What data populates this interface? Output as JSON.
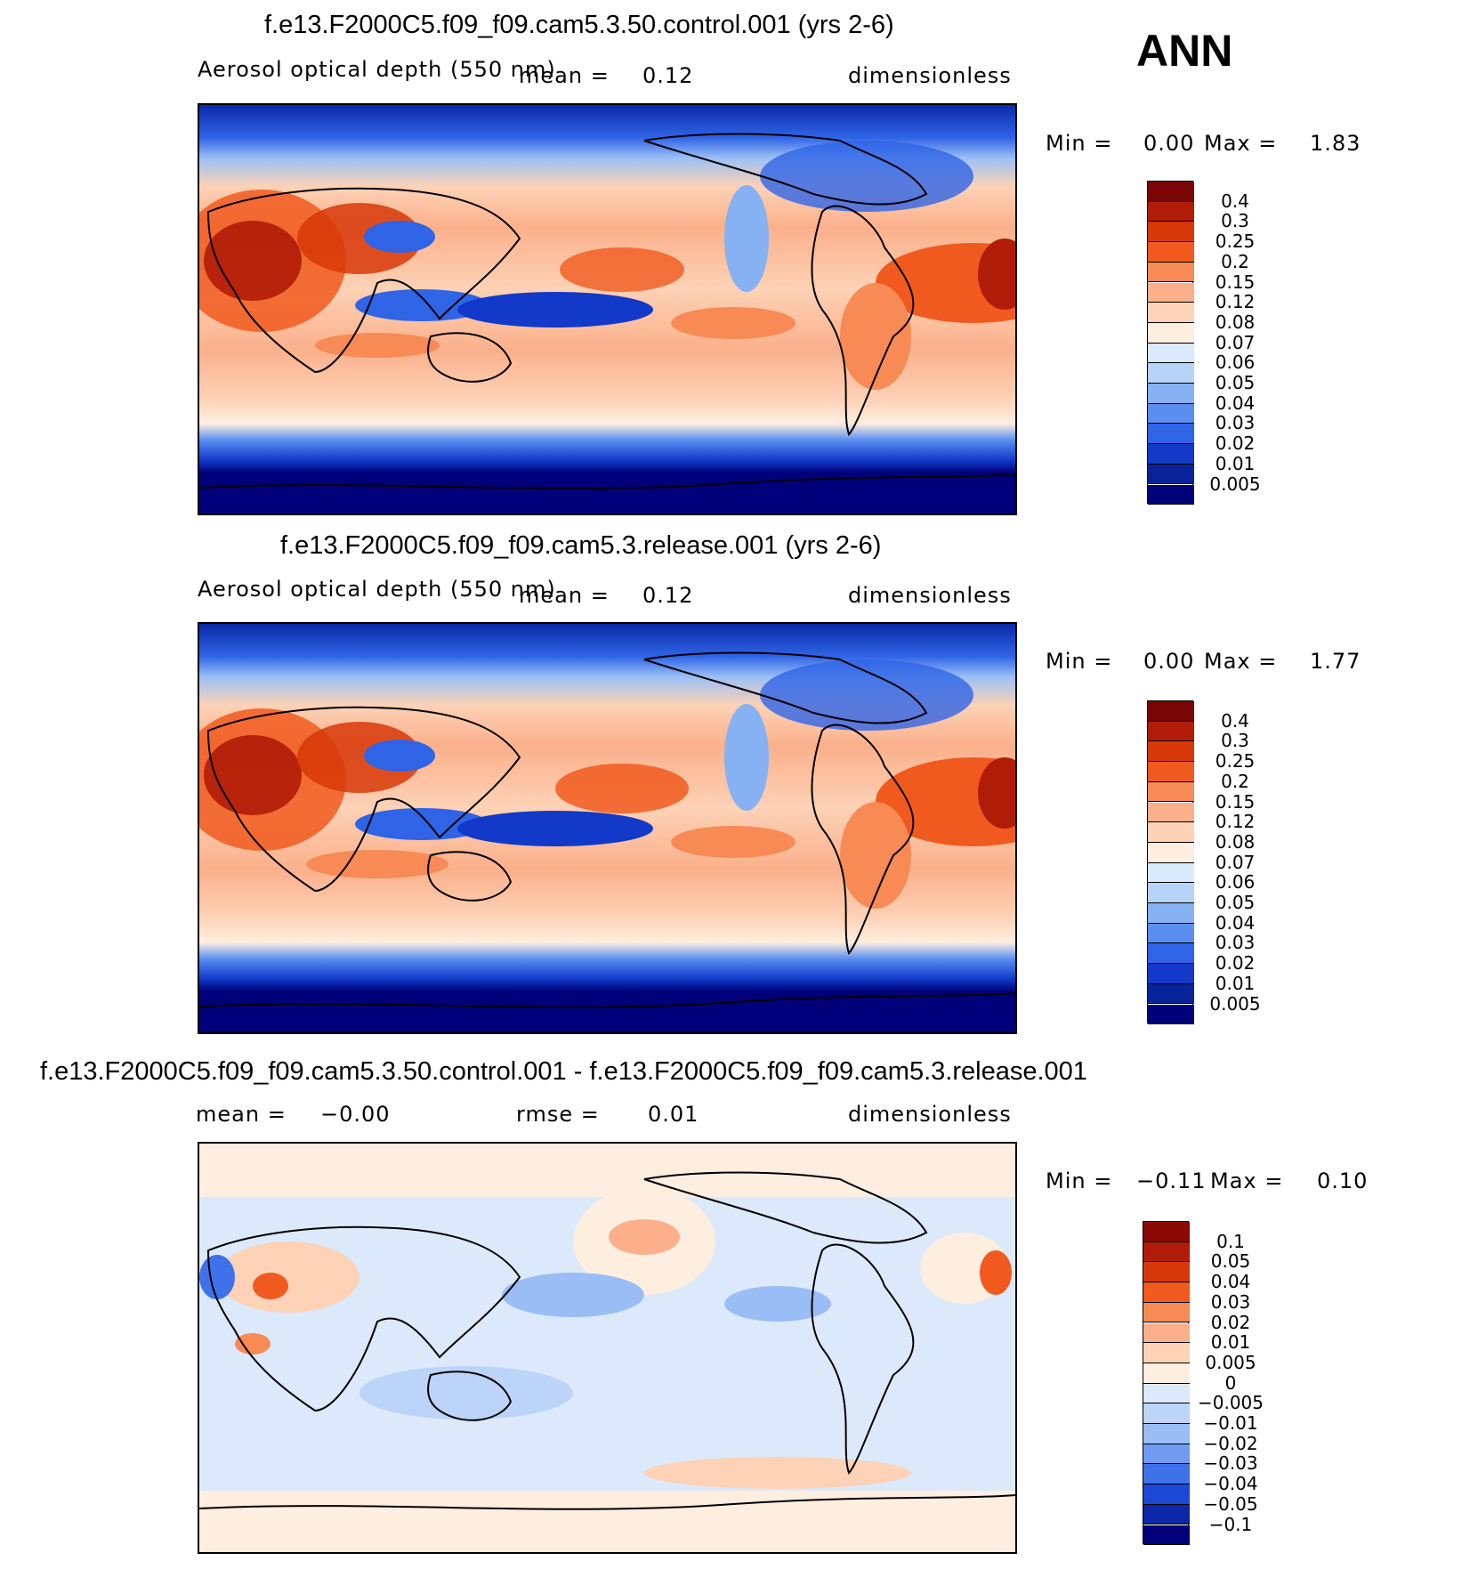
{
  "season": "ANN",
  "units": "dimensionless",
  "panels": [
    {
      "title": "f.e13.F2000C5.f09_f09.cam5.3.50.control.001 (yrs 2-6)",
      "left_label": "Aerosol optical depth (550 nm)",
      "mean_label": "mean =",
      "mean_value": "0.12",
      "units": "dimensionless",
      "min_label": "Min =",
      "min_value": "0.00",
      "max_label": "Max =",
      "max_value": "1.83",
      "colorbar_labels": [
        "0.4",
        "0.3",
        "0.25",
        "0.2",
        "0.15",
        "0.12",
        "0.08",
        "0.07",
        "0.06",
        "0.05",
        "0.04",
        "0.03",
        "0.02",
        "0.01",
        "0.005"
      ],
      "colorbar_colors": [
        "#7a0403",
        "#b01c07",
        "#d73808",
        "#f05a1e",
        "#f78a55",
        "#fbb08b",
        "#fdd2b6",
        "#fdeee0",
        "#d8eafb",
        "#b6d3f8",
        "#86b2f3",
        "#5a8ff0",
        "#2f64e6",
        "#1239c8",
        "#08239a",
        "#00007a"
      ]
    },
    {
      "title": "f.e13.F2000C5.f09_f09.cam5.3.release.001 (yrs 2-6)",
      "left_label": "Aerosol optical depth (550 nm)",
      "mean_label": "mean =",
      "mean_value": "0.12",
      "units": "dimensionless",
      "min_label": "Min =",
      "min_value": "0.00",
      "max_label": "Max =",
      "max_value": "1.77",
      "colorbar_labels": [
        "0.4",
        "0.3",
        "0.25",
        "0.2",
        "0.15",
        "0.12",
        "0.08",
        "0.07",
        "0.06",
        "0.05",
        "0.04",
        "0.03",
        "0.02",
        "0.01",
        "0.005"
      ],
      "colorbar_colors": [
        "#7a0403",
        "#b01c07",
        "#d73808",
        "#f05a1e",
        "#f78a55",
        "#fbb08b",
        "#fdd2b6",
        "#fdeee0",
        "#d8eafb",
        "#b6d3f8",
        "#86b2f3",
        "#5a8ff0",
        "#2f64e6",
        "#1239c8",
        "#08239a",
        "#00007a"
      ]
    },
    {
      "title": "f.e13.F2000C5.f09_f09.cam5.3.50.control.001 - f.e13.F2000C5.f09_f09.cam5.3.release.001",
      "mean_label": "mean =",
      "mean_value": "−0.00",
      "rmse_label": "rmse =",
      "rmse_value": "0.01",
      "units": "dimensionless",
      "min_label": "Min =",
      "min_value": "−0.11",
      "max_label": "Max =",
      "max_value": "0.10",
      "colorbar_labels": [
        "0.1",
        "0.05",
        "0.04",
        "0.03",
        "0.02",
        "0.01",
        "0.005",
        "0",
        "−0.005",
        "−0.01",
        "−0.02",
        "−0.03",
        "−0.04",
        "−0.05",
        "−0.1"
      ],
      "colorbar_colors": [
        "#8b0a05",
        "#b01c07",
        "#d73808",
        "#f05a1e",
        "#f78a55",
        "#fbb08b",
        "#fdd2b6",
        "#fdeee0",
        "#dbe9fb",
        "#bcd4f8",
        "#9bbdf5",
        "#6f9cf1",
        "#3f72ea",
        "#1c48d6",
        "#0a28a8",
        "#00007a"
      ]
    }
  ]
}
